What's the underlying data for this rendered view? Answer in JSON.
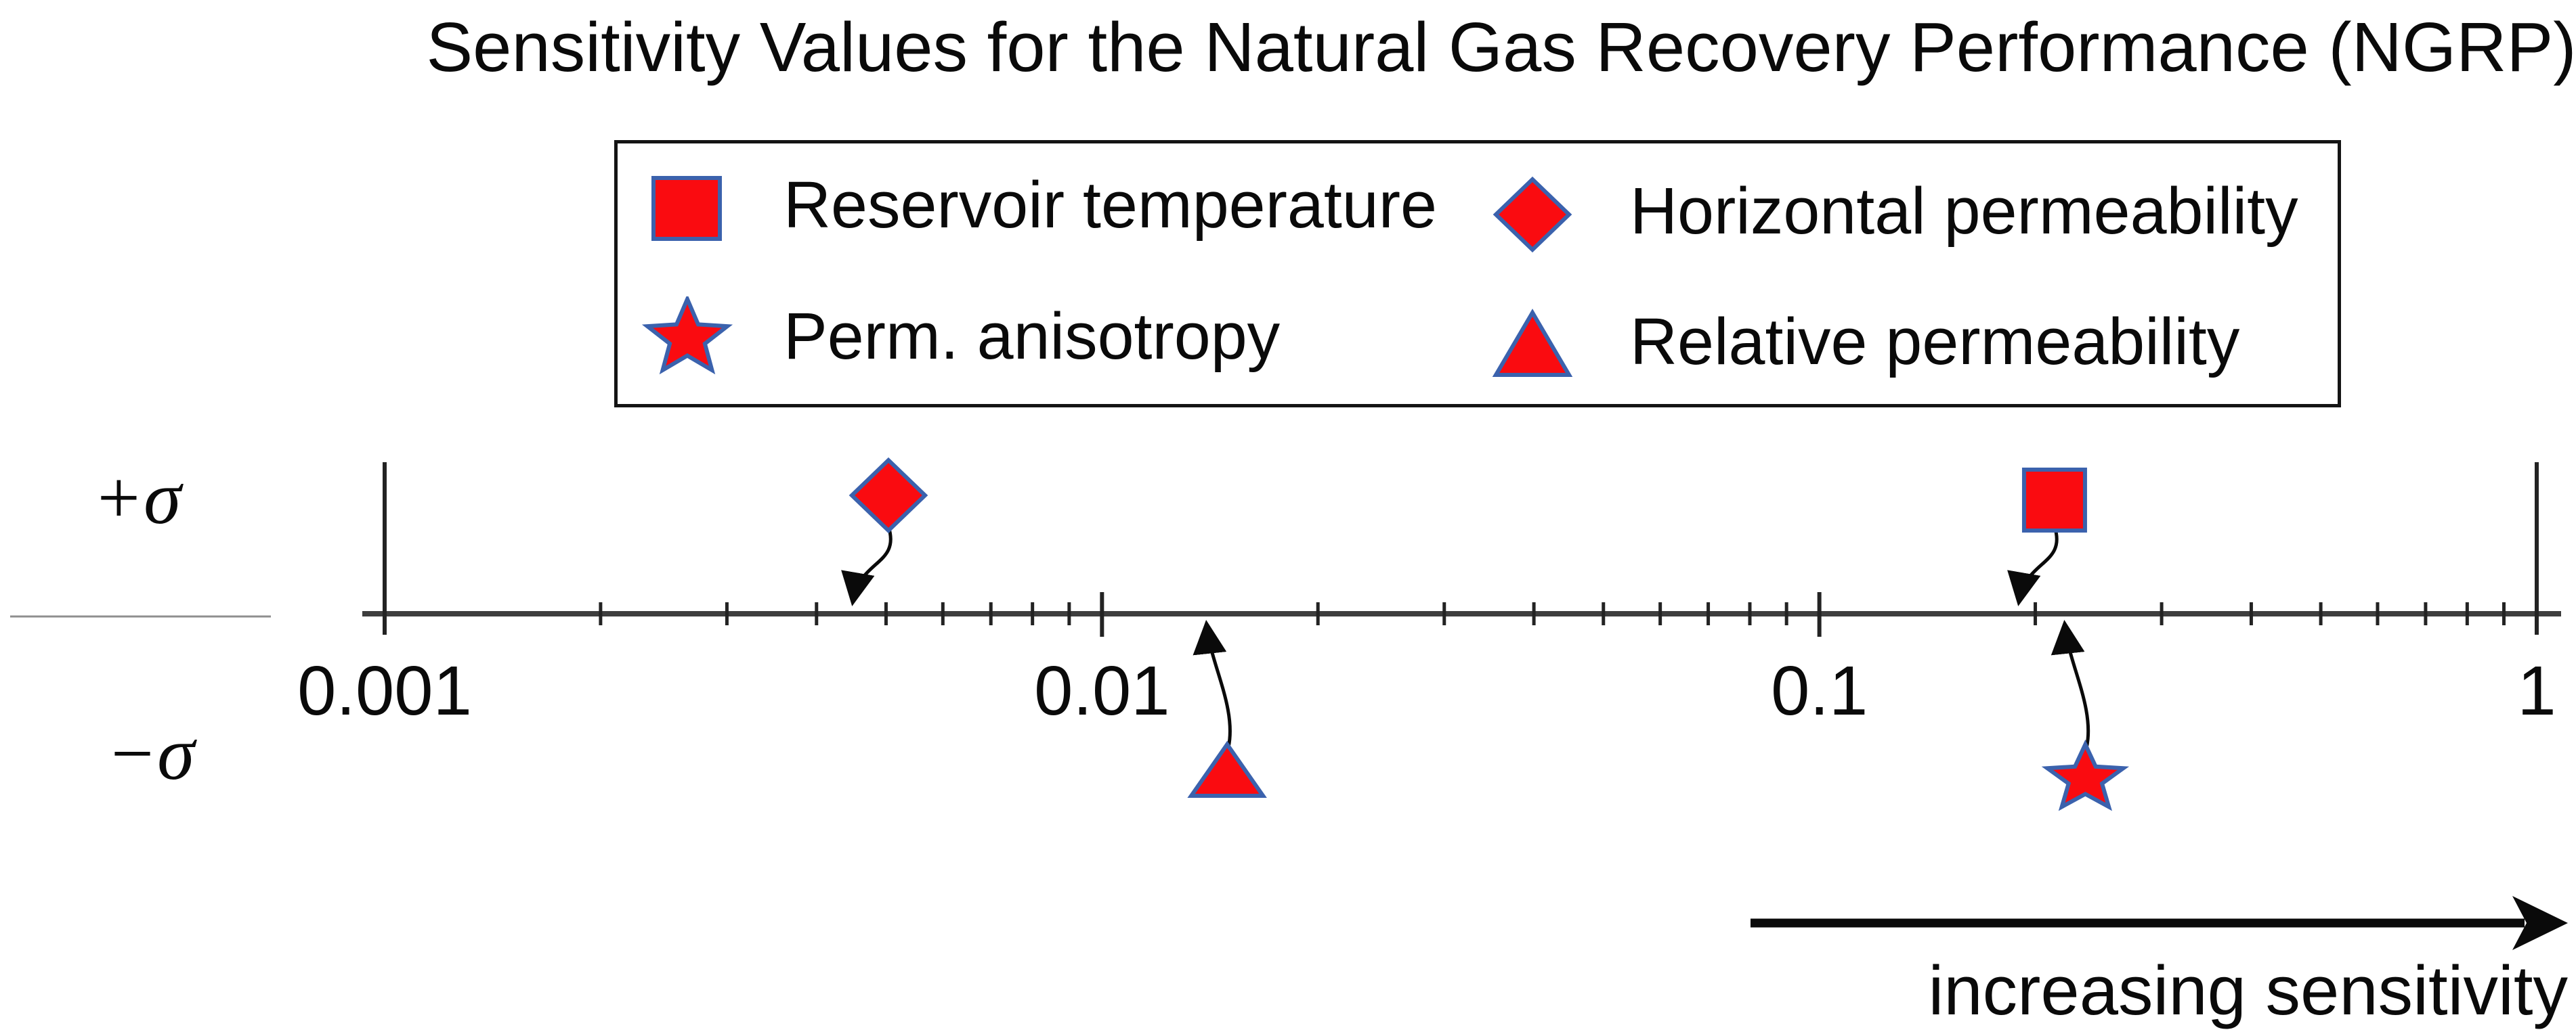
{
  "title": "Sensitivity Values for the Natural Gas Recovery Performance (NGRP)",
  "colors": {
    "marker_fill": "#fa0b10",
    "marker_stroke": "#3b62ad",
    "axis_line": "#3e3e3e",
    "tick": "#232323",
    "separator": "#8f8f8f",
    "arrow": "#0a0a0a",
    "text": "#0a0a0a"
  },
  "legend": {
    "items": [
      {
        "label": "Reservoir temperature",
        "shape": "square"
      },
      {
        "label": "Horizontal permeability",
        "shape": "diamond"
      },
      {
        "label": "Perm. anisotropy",
        "shape": "star"
      },
      {
        "label": "Relative permeability",
        "shape": "triangle"
      }
    ]
  },
  "axis": {
    "scale": "log",
    "min": 0.001,
    "max": 1,
    "ticks": [
      {
        "label": "0.001",
        "value": 0.001
      },
      {
        "label": "0.01",
        "value": 0.01
      },
      {
        "label": "0.1",
        "value": 0.1
      },
      {
        "label": "1",
        "value": 1
      }
    ]
  },
  "sigma": {
    "plus": "+σ",
    "minus": "−σ"
  },
  "annotation": {
    "arrow_label": "increasing sensitivity"
  },
  "chart_data": {
    "type": "scatter",
    "title": "Sensitivity Values for the Natural Gas Recovery Performance (NGRP)",
    "x_scale": "log",
    "x_range": [
      0.001,
      1
    ],
    "rows": [
      "+σ",
      "−σ"
    ],
    "legend_position": "top-center",
    "grid": false,
    "points": [
      {
        "name": "Horizontal permeability",
        "shape": "diamond",
        "sigma": "+σ",
        "value": 0.0045
      },
      {
        "name": "Reservoir temperature",
        "shape": "square",
        "sigma": "+σ",
        "value": 0.19
      },
      {
        "name": "Relative permeability",
        "shape": "triangle",
        "sigma": "−σ",
        "value": 0.014
      },
      {
        "name": "Perm. anisotropy",
        "shape": "star",
        "sigma": "−σ",
        "value": 0.22
      }
    ]
  }
}
